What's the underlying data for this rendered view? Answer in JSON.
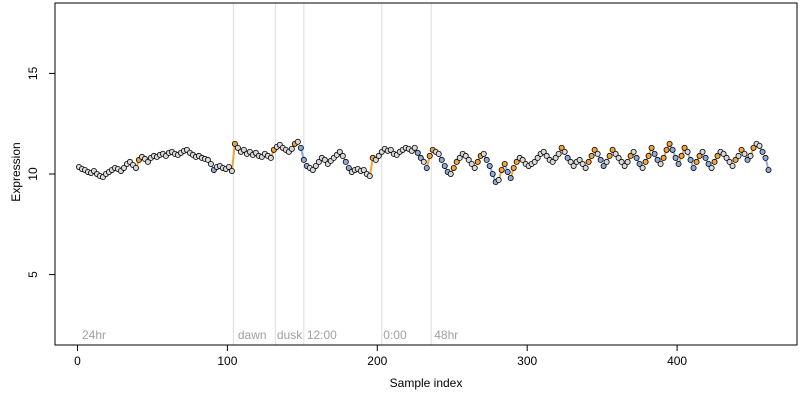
{
  "chart_data": {
    "type": "scatter",
    "title": "",
    "xlabel": "Sample index",
    "ylabel": "Expression",
    "xlim": [
      -15,
      480
    ],
    "ylim": [
      1.5,
      18.5
    ],
    "x_ticks": [
      0,
      100,
      200,
      300,
      400
    ],
    "y_ticks": [
      5,
      10,
      15
    ],
    "grid": false,
    "legend": "none",
    "vertical_lines": [
      104,
      132,
      151,
      203,
      236
    ],
    "annotations": [
      {
        "x": 3,
        "text": "24hr"
      },
      {
        "x": 107,
        "text": "dawn"
      },
      {
        "x": 133,
        "text": "dusk"
      },
      {
        "x": 153,
        "text": "12:00"
      },
      {
        "x": 204,
        "text": "0:00"
      },
      {
        "x": 238,
        "text": "48hr"
      }
    ],
    "colors": {
      "points_default": "#d9d9d9",
      "points_high": "#f2a33a",
      "points_low": "#8eaadb",
      "segment_high": "#f2a33a",
      "segment_low": "#8eaadb",
      "vline": "#dddddd",
      "annotation_text": "#a0a0a0"
    },
    "series": [
      {
        "x": [
          1,
          3,
          5,
          7,
          9,
          11,
          13,
          15,
          17,
          19,
          21,
          23,
          25,
          27,
          29,
          31,
          33,
          35,
          37,
          39,
          41,
          43,
          45,
          47,
          49,
          51,
          53,
          55,
          57,
          59,
          61,
          63,
          65,
          67,
          69,
          71,
          73,
          75,
          77,
          79,
          81,
          83,
          85,
          87,
          89,
          91,
          93,
          95,
          97,
          99,
          101,
          103,
          105,
          107,
          109,
          111,
          113,
          115,
          117,
          119,
          121,
          123,
          125,
          127,
          129,
          131,
          133,
          135,
          137,
          139,
          141,
          143,
          145,
          147,
          149,
          151,
          153,
          155,
          157,
          159,
          161,
          163,
          165,
          167,
          169,
          171,
          173,
          175,
          177,
          179,
          181,
          183,
          185,
          187,
          189,
          191,
          193,
          195,
          197,
          199,
          201,
          203,
          205,
          207,
          209,
          211,
          213,
          215,
          217,
          219,
          221,
          223,
          225,
          227,
          229,
          231,
          233,
          235,
          237,
          239,
          241,
          243,
          245,
          247,
          249,
          251,
          253,
          255,
          257,
          259,
          261,
          263,
          265,
          267,
          269,
          271,
          273,
          275,
          277,
          279,
          281,
          283,
          285,
          287,
          289,
          291,
          293,
          295,
          297,
          299,
          301,
          303,
          305,
          307,
          309,
          311,
          313,
          315,
          317,
          319,
          321,
          323,
          325,
          327,
          329,
          331,
          333,
          335,
          337,
          339,
          341,
          343,
          345,
          347,
          349,
          351,
          353,
          355,
          357,
          359,
          361,
          363,
          365,
          367,
          369,
          371,
          373,
          375,
          377,
          379,
          381,
          383,
          385,
          387,
          389,
          391,
          393,
          395,
          397,
          399,
          401,
          403,
          405,
          407,
          409,
          411,
          413,
          415,
          417,
          419,
          421,
          423,
          425,
          427,
          429,
          431,
          433,
          435,
          437,
          439,
          441,
          443,
          445,
          447,
          449,
          451,
          453,
          455,
          457,
          459,
          461
        ],
        "y": [
          10.35,
          10.25,
          10.2,
          10.1,
          10.05,
          10.15,
          10.0,
          9.9,
          9.85,
          10.0,
          10.1,
          10.2,
          10.3,
          10.25,
          10.15,
          10.3,
          10.5,
          10.6,
          10.45,
          10.3,
          10.7,
          10.85,
          10.75,
          10.6,
          10.8,
          10.9,
          10.85,
          10.95,
          11.0,
          10.9,
          11.05,
          11.1,
          11.0,
          10.95,
          11.05,
          11.15,
          11.2,
          11.05,
          10.95,
          10.85,
          10.9,
          10.8,
          10.75,
          10.7,
          10.5,
          10.2,
          10.35,
          10.4,
          10.3,
          10.25,
          10.35,
          10.15,
          11.5,
          11.3,
          11.1,
          11.2,
          11.0,
          11.1,
          10.95,
          11.05,
          10.9,
          10.85,
          11.0,
          10.9,
          10.8,
          11.2,
          11.35,
          11.45,
          11.3,
          11.2,
          11.1,
          11.25,
          11.5,
          11.6,
          11.3,
          10.7,
          10.4,
          10.3,
          10.2,
          10.4,
          10.6,
          10.8,
          10.7,
          10.5,
          10.65,
          10.8,
          10.95,
          11.1,
          10.9,
          10.6,
          10.3,
          10.1,
          10.2,
          10.25,
          10.15,
          10.2,
          10.0,
          9.9,
          10.8,
          10.7,
          10.9,
          11.1,
          11.25,
          11.15,
          11.2,
          11.0,
          10.95,
          11.1,
          11.2,
          11.3,
          11.25,
          11.15,
          11.3,
          11.05,
          10.8,
          10.6,
          10.3,
          10.9,
          11.2,
          11.1,
          11.0,
          10.7,
          10.4,
          10.1,
          10.0,
          10.3,
          10.6,
          10.8,
          11.0,
          10.9,
          10.7,
          10.5,
          10.3,
          10.6,
          10.9,
          11.0,
          10.7,
          10.4,
          10.0,
          9.6,
          9.7,
          10.2,
          10.5,
          10.1,
          9.8,
          10.3,
          10.6,
          10.8,
          10.7,
          10.5,
          10.4,
          10.5,
          10.6,
          10.8,
          11.0,
          11.1,
          10.9,
          10.7,
          10.6,
          10.8,
          11.0,
          11.3,
          11.1,
          10.8,
          10.6,
          10.4,
          10.6,
          10.7,
          10.5,
          10.3,
          10.6,
          10.9,
          11.2,
          11.0,
          10.7,
          10.4,
          10.6,
          10.9,
          11.2,
          11.0,
          10.8,
          10.6,
          10.4,
          10.6,
          10.9,
          11.1,
          10.8,
          10.5,
          10.3,
          10.6,
          10.9,
          11.3,
          11.0,
          10.7,
          10.5,
          10.8,
          11.2,
          11.5,
          11.2,
          10.8,
          10.5,
          10.9,
          11.3,
          11.1,
          10.7,
          10.3,
          10.6,
          10.9,
          11.1,
          10.8,
          10.5,
          10.3,
          10.6,
          10.9,
          11.1,
          11.0,
          10.8,
          10.6,
          10.4,
          10.7,
          10.9,
          11.2,
          11.0,
          10.7,
          10.9,
          11.3,
          11.5,
          11.4,
          11.1,
          10.8,
          10.2
        ]
      }
    ]
  }
}
